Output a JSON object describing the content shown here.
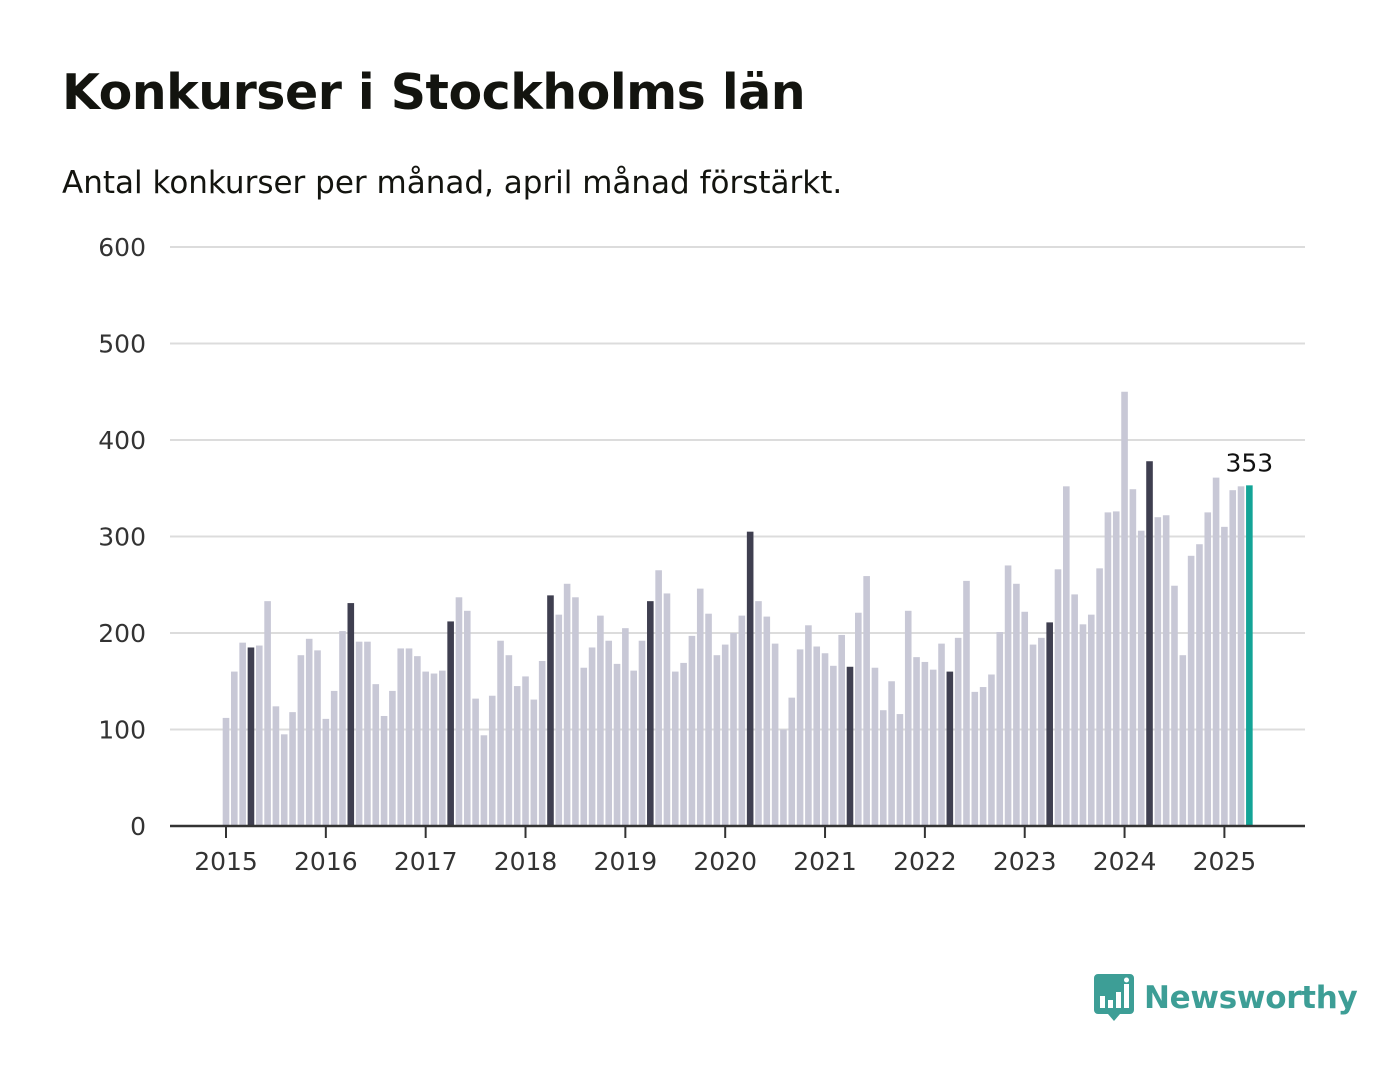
{
  "title": "Konkurser i Stockholms län",
  "subtitle": "Antal konkurser per månad, april månad förstärkt.",
  "brand": {
    "name": "Newsworthy",
    "icon": "bar-chart-speech-bubble-icon"
  },
  "colors": {
    "bar": "#c8c8d6",
    "highlight": "#3f3f50",
    "latest": "#13a497",
    "grid": "#dcdcdc",
    "axis": "#333333",
    "brand": "#3d9e96"
  },
  "chart_data": {
    "type": "bar",
    "title": "",
    "xlabel": "",
    "ylabel": "",
    "ylim": [
      0,
      600
    ],
    "yticks": [
      0,
      100,
      200,
      300,
      400,
      500,
      600
    ],
    "ytick_labels": [
      "0",
      "100",
      "200",
      "300",
      "400",
      "500",
      "600"
    ],
    "xtick_labels": [
      "2015",
      "2016",
      "2017",
      "2018",
      "2019",
      "2020",
      "2021",
      "2022",
      "2023",
      "2024",
      "2025"
    ],
    "grid": "horizontal",
    "start": "2015-01",
    "highlight_month": "april",
    "latest_label": "353",
    "values": [
      112,
      160,
      190,
      185,
      187,
      233,
      124,
      95,
      118,
      177,
      194,
      182,
      111,
      140,
      202,
      231,
      191,
      191,
      147,
      114,
      140,
      184,
      184,
      176,
      160,
      158,
      161,
      212,
      237,
      223,
      132,
      94,
      135,
      192,
      177,
      145,
      155,
      131,
      171,
      239,
      219,
      251,
      237,
      164,
      185,
      218,
      192,
      168,
      205,
      161,
      192,
      233,
      265,
      241,
      160,
      169,
      197,
      246,
      220,
      177,
      188,
      200,
      218,
      305,
      233,
      217,
      189,
      100,
      133,
      183,
      208,
      186,
      179,
      166,
      198,
      165,
      221,
      259,
      164,
      120,
      150,
      116,
      223,
      175,
      170,
      162,
      189,
      160,
      195,
      254,
      139,
      144,
      157,
      201,
      270,
      251,
      222,
      188,
      195,
      211,
      266,
      352,
      240,
      209,
      219,
      267,
      325,
      326,
      450,
      349,
      306,
      378,
      320,
      322,
      249,
      177,
      280,
      292,
      325,
      361,
      310,
      348,
      352,
      353
    ]
  }
}
